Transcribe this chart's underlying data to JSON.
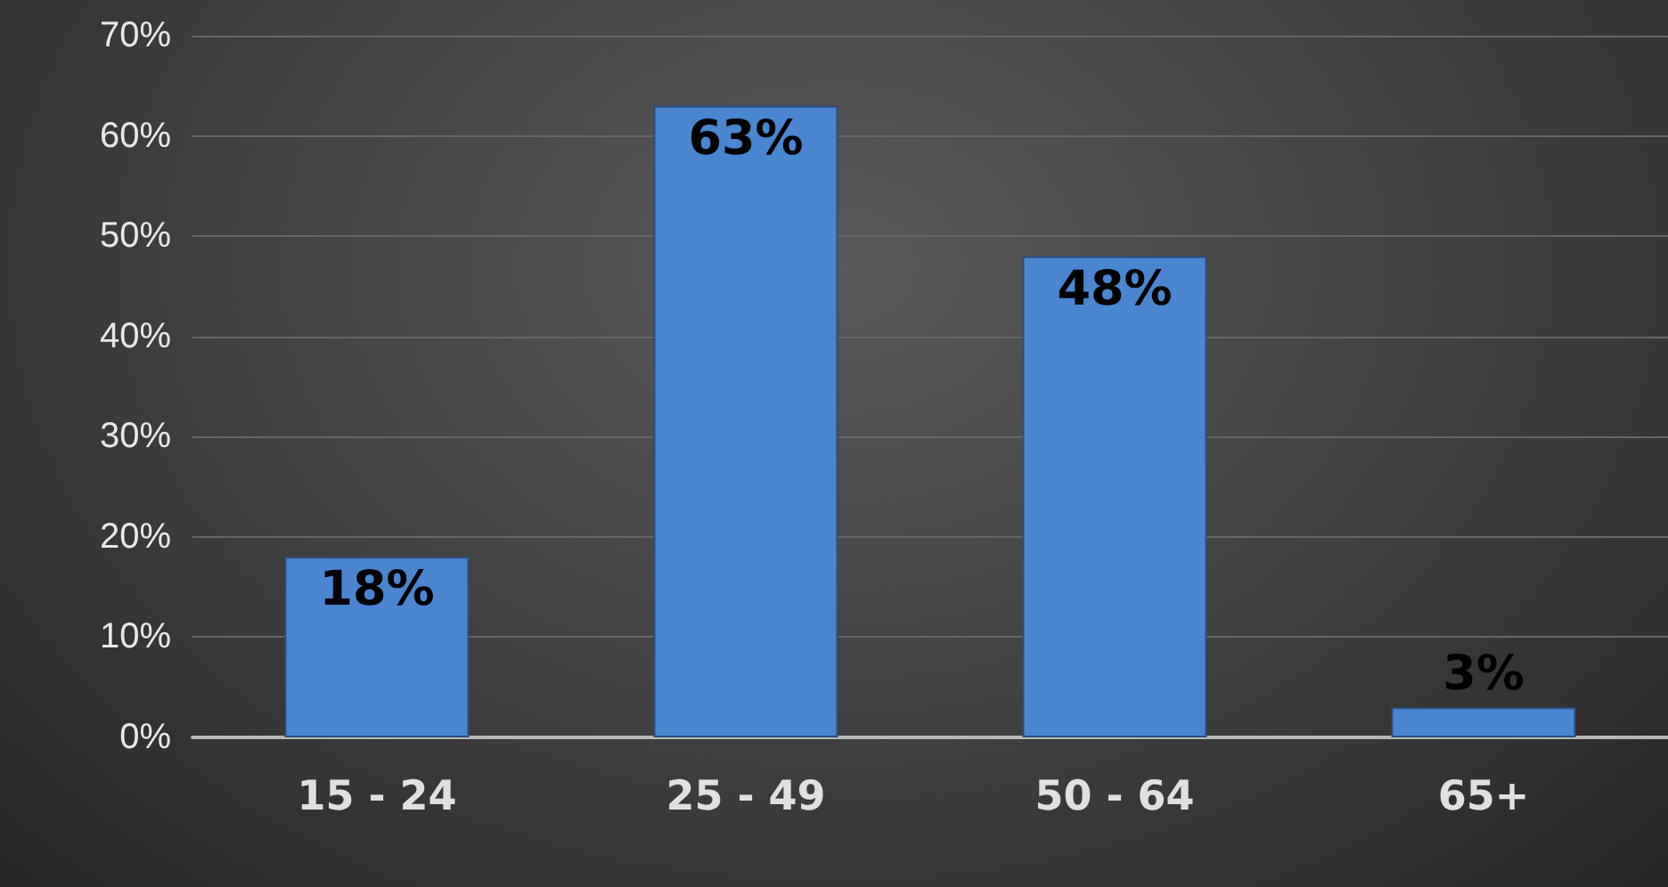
{
  "chart_data": {
    "type": "bar",
    "categories": [
      "15 - 24",
      "25 - 49",
      "50 - 64",
      "65+"
    ],
    "values": [
      18,
      63,
      48,
      3
    ],
    "value_labels": [
      "18%",
      "63%",
      "48%",
      "3%"
    ],
    "color": "#4a86d0",
    "ylim": [
      0,
      70
    ],
    "yticks": [
      {
        "value": 0,
        "label": "0%"
      },
      {
        "value": 10,
        "label": "10%"
      },
      {
        "value": 20,
        "label": "20%"
      },
      {
        "value": 30,
        "label": "30%"
      },
      {
        "value": 40,
        "label": "40%"
      },
      {
        "value": 50,
        "label": "50%"
      },
      {
        "value": 60,
        "label": "60%"
      },
      {
        "value": 70,
        "label": "70%"
      }
    ],
    "grid": "y"
  }
}
